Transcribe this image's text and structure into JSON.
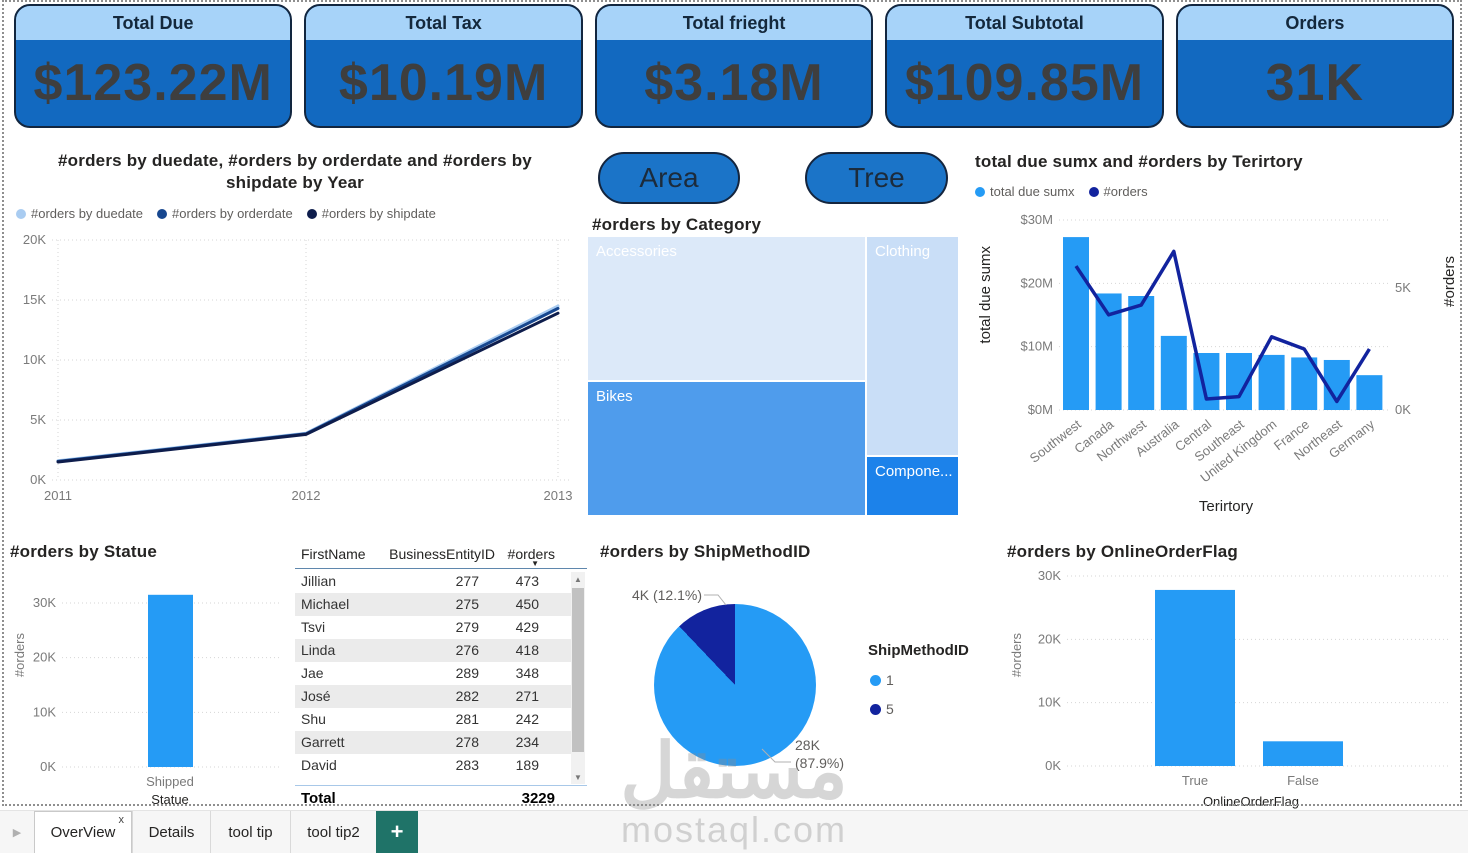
{
  "page": {
    "watermark": {
      "primary": "مستقل",
      "secondary": "mostaql.com"
    }
  },
  "colors": {
    "kpi_header_bg": "#A7D3F9",
    "kpi_body_bg": "#1269C0",
    "kpi_border": "#12263F",
    "accent_blue": "#259BF5",
    "dark_navy": "#12239E",
    "button_bg": "#1B74C8",
    "tab_add_bg": "#1F7368",
    "axis_text": "#7a7a7a",
    "title_text": "#252423",
    "legend_text": "#605E5C",
    "grid": "#d6d6d6"
  },
  "kpi_cards": [
    {
      "title": "Total Due",
      "value": "$123.22M"
    },
    {
      "title": "Total Tax",
      "value": "$10.19M"
    },
    {
      "title": "Total frieght",
      "value": "$3.18M"
    },
    {
      "title": "Total Subtotal",
      "value": "$109.85M"
    },
    {
      "title": "Orders",
      "value": "31K"
    }
  ],
  "buttons": {
    "area": "Area",
    "tree": "Tree"
  },
  "tabs": {
    "nav_arrow": "▶",
    "items": [
      {
        "label": "OverView",
        "active": true,
        "close_label": "x"
      },
      {
        "label": "Details",
        "active": false
      },
      {
        "label": "tool tip",
        "active": false
      },
      {
        "label": "tool tip2",
        "active": false
      }
    ],
    "add_label": "+"
  },
  "chart_data": [
    {
      "type": "line",
      "title": "#orders by duedate, #orders by orderdate and #orders by shipdate by Year",
      "x": [
        "2011",
        "2012",
        "2013"
      ],
      "series": [
        {
          "name": "#orders by duedate",
          "color": "#A9CCF1",
          "values_k": [
            1.6,
            3.9,
            14.5
          ]
        },
        {
          "name": "#orders by orderdate",
          "color": "#17478F",
          "values_k": [
            1.55,
            3.85,
            14.3
          ]
        },
        {
          "name": "#orders by shipdate",
          "color": "#0E1D4C",
          "values_k": [
            1.5,
            3.8,
            13.9
          ]
        }
      ],
      "ylim_k": [
        0,
        20
      ],
      "yticks": [
        "0K",
        "5K",
        "10K",
        "15K",
        "20K"
      ],
      "grid": "dotted"
    },
    {
      "type": "treemap",
      "title": "#orders by Category",
      "tiles": [
        {
          "label": "Accessories",
          "color": "#DCE9F9",
          "est_share_pct": 38
        },
        {
          "label": "Bikes",
          "color": "#4F9CEC",
          "est_share_pct": 36
        },
        {
          "label": "Clothing",
          "color": "#C9DEF7",
          "est_share_pct": 20
        },
        {
          "label": "Compone...",
          "color": "#1C82EA",
          "est_share_pct": 6
        }
      ]
    },
    {
      "type": "combo-bar-line",
      "title": "total due sumx and #orders by Terirtory",
      "categories": [
        "Southwest",
        "Canada",
        "Northwest",
        "Australia",
        "Central",
        "Southeast",
        "United Kingdom",
        "France",
        "Northeast",
        "Germany"
      ],
      "series": [
        {
          "name": "total due sumx",
          "kind": "bar",
          "color": "#259BF5",
          "unit": "$M",
          "values_m": [
            27.3,
            18.4,
            18.0,
            11.7,
            9.0,
            9.0,
            8.7,
            8.3,
            7.9,
            5.5
          ]
        },
        {
          "name": "#orders",
          "kind": "line",
          "color": "#12239E",
          "unit": "K",
          "values_k": [
            5.9,
            3.9,
            4.3,
            6.5,
            0.45,
            0.55,
            3.0,
            2.5,
            0.35,
            2.5
          ]
        }
      ],
      "yticks_left": [
        "$0M",
        "$10M",
        "$20M",
        "$30M"
      ],
      "yticks_right": [
        "0K",
        "5K"
      ],
      "ylabel_left": "total due sumx",
      "ylabel_right": "#orders",
      "xlabel": "Terirtory"
    },
    {
      "type": "bar",
      "title": "#orders by Statue",
      "categories": [
        "Shipped"
      ],
      "values_k": [
        31.5
      ],
      "yticks": [
        "0K",
        "10K",
        "20K",
        "30K"
      ],
      "ylim_k": [
        0,
        35
      ],
      "xlabel": "Statue",
      "ylabel": "#orders",
      "bar_color": "#259BF5"
    },
    {
      "type": "table",
      "headers": [
        "FirstName",
        "BusinessEntityID",
        "#orders"
      ],
      "sorted_by": "#orders",
      "sort_icon": "▼",
      "rows": [
        [
          "Jillian",
          "277",
          "473"
        ],
        [
          "Michael",
          "275",
          "450"
        ],
        [
          "Tsvi",
          "279",
          "429"
        ],
        [
          "Linda",
          "276",
          "418"
        ],
        [
          "Jae",
          "289",
          "348"
        ],
        [
          "José",
          "282",
          "271"
        ],
        [
          "Shu",
          "281",
          "242"
        ],
        [
          "Garrett",
          "278",
          "234"
        ],
        [
          "David",
          "283",
          "189"
        ]
      ],
      "total_label": "Total",
      "total_value": "3229"
    },
    {
      "type": "pie",
      "title": "#orders by ShipMethodID",
      "legend_title": "ShipMethodID",
      "slices": [
        {
          "label": "1",
          "callout": "28K (87.9%)",
          "pct": 87.9,
          "color": "#259BF5"
        },
        {
          "label": "5",
          "callout": "4K (12.1%)",
          "pct": 12.1,
          "color": "#12239E"
        }
      ]
    },
    {
      "type": "bar",
      "title": "#orders by OnlineOrderFlag",
      "categories": [
        "True",
        "False"
      ],
      "values_k": [
        27.8,
        3.9
      ],
      "yticks": [
        "0K",
        "10K",
        "20K",
        "30K"
      ],
      "ylim_k": [
        0,
        32
      ],
      "xlabel": "OnlineOrderFlag",
      "ylabel": "#orders",
      "bar_color": "#259BF5"
    }
  ]
}
